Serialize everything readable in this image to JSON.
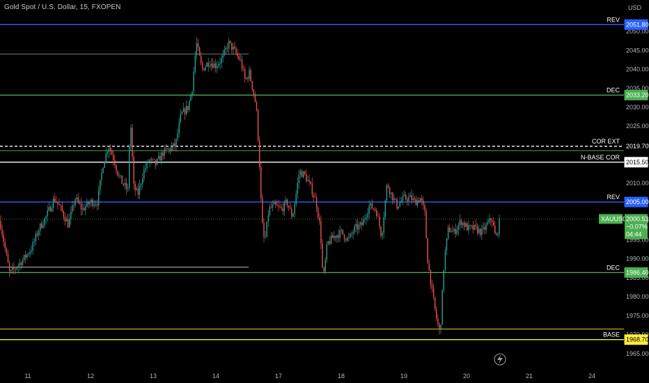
{
  "header": {
    "title": "Gold Spot / U.S. Dollar, 15, FXOPEN"
  },
  "chart_data": {
    "type": "candlestick",
    "y_axis": {
      "currency": "USD",
      "range": [
        1963,
        2057
      ],
      "ticks": [
        "2050.00",
        "2045.00",
        "2040.00",
        "2035.00",
        "2030.00",
        "2025.00",
        "2020.00",
        "2015.00",
        "2010.00",
        "2005.00",
        "2000.00",
        "1995.00",
        "1990.00",
        "1985.00",
        "1980.00",
        "1975.00",
        "1970.00",
        "1965.00"
      ]
    },
    "x_axis": {
      "ticks": [
        "11",
        "12",
        "13",
        "14",
        "17",
        "18",
        "19",
        "20",
        "21",
        "24"
      ]
    },
    "levels": [
      {
        "label": "REV",
        "price": 2051.8,
        "badge": "2051.80",
        "color": "#2962ff",
        "badge_bg": "#2962ff",
        "badge_fg": "#ffffff",
        "style": "solid"
      },
      {
        "label": "DEC",
        "price": 2033.2,
        "badge": "2033.20",
        "color": "#4caf50",
        "badge_bg": "#4caf50",
        "badge_fg": "#ffffff",
        "style": "solid"
      },
      {
        "label": "COR EXT",
        "price": 2019.7,
        "badge": "2019.70",
        "color": "#ffffff",
        "badge_bg": "#000000",
        "badge_fg": "#ffffff",
        "style": "dashed"
      },
      {
        "label": "N-BASE COR",
        "price": 2015.5,
        "badge": "2015.50",
        "color": "#ffffff",
        "badge_bg": "#ffffff",
        "badge_fg": "#000000",
        "style": "solid"
      },
      {
        "label": "REV",
        "price": 2005.0,
        "badge": "2005.00",
        "color": "#2962ff",
        "badge_bg": "#2962ff",
        "badge_fg": "#ffffff",
        "style": "solid"
      },
      {
        "label": "DEC",
        "price": 1986.4,
        "badge": "1986.40",
        "color": "#4caf50",
        "badge_bg": "#4caf50",
        "badge_fg": "#ffffff",
        "style": "solid"
      },
      {
        "label": "BASE",
        "price": 1968.7,
        "badge": "1968.70",
        "color": "#ffeb3b",
        "badge_bg": "#ffeb3b",
        "badge_fg": "#000000",
        "style": "solid"
      }
    ],
    "extra_lines": [
      {
        "price": 2044.0,
        "color": "#9e9e9e",
        "x_end_label": "14"
      },
      {
        "price": 2018.5,
        "color": "#4caf50"
      },
      {
        "price": 1987.8,
        "color": "#ffffff"
      },
      {
        "price": 1971.5,
        "color": "#ffeb3b"
      }
    ],
    "current_price": {
      "symbol": "XAUUSD",
      "price": 2000.53,
      "price_label": "2000.53",
      "change": "−0.07%",
      "countdown": "04:44",
      "color": "#4caf50"
    },
    "candle_colors": {
      "up": "#26a69a",
      "down": "#ef5350"
    },
    "price_path": [
      [
        0,
        2000
      ],
      [
        8,
        1992
      ],
      [
        14,
        1986
      ],
      [
        24,
        1988
      ],
      [
        34,
        1990
      ],
      [
        46,
        1993
      ],
      [
        56,
        1998
      ],
      [
        66,
        2001
      ],
      [
        78,
        2006
      ],
      [
        88,
        2003
      ],
      [
        98,
        1999
      ],
      [
        108,
        2006
      ],
      [
        118,
        2003
      ],
      [
        130,
        2005
      ],
      [
        140,
        2005
      ],
      [
        148,
        2015
      ],
      [
        156,
        2020
      ],
      [
        164,
        2016
      ],
      [
        170,
        2012
      ],
      [
        176,
        2010
      ],
      [
        184,
        2008
      ],
      [
        187,
        2028
      ],
      [
        192,
        2009
      ],
      [
        198,
        2007
      ],
      [
        206,
        2013
      ],
      [
        214,
        2016
      ],
      [
        224,
        2015
      ],
      [
        234,
        2018
      ],
      [
        244,
        2019
      ],
      [
        252,
        2020
      ],
      [
        260,
        2028
      ],
      [
        270,
        2030
      ],
      [
        276,
        2035
      ],
      [
        282,
        2047
      ],
      [
        290,
        2040
      ],
      [
        300,
        2042
      ],
      [
        310,
        2041
      ],
      [
        320,
        2043
      ],
      [
        328,
        2047
      ],
      [
        336,
        2045
      ],
      [
        346,
        2042
      ],
      [
        352,
        2037
      ],
      [
        358,
        2039
      ],
      [
        364,
        2034
      ],
      [
        368,
        2030
      ],
      [
        372,
        2018
      ],
      [
        376,
        2000
      ],
      [
        380,
        1994
      ],
      [
        386,
        2003
      ],
      [
        394,
        2004
      ],
      [
        404,
        2003
      ],
      [
        412,
        2005
      ],
      [
        420,
        2001
      ],
      [
        430,
        2013
      ],
      [
        438,
        2012
      ],
      [
        446,
        2009
      ],
      [
        454,
        2005
      ],
      [
        460,
        1998
      ],
      [
        464,
        1984
      ],
      [
        470,
        1994
      ],
      [
        480,
        1996
      ],
      [
        490,
        1997
      ],
      [
        500,
        1995
      ],
      [
        510,
        1998
      ],
      [
        520,
        1999
      ],
      [
        530,
        2004
      ],
      [
        540,
        2003
      ],
      [
        548,
        1996
      ],
      [
        556,
        2010
      ],
      [
        562,
        2007
      ],
      [
        570,
        2004
      ],
      [
        580,
        2006
      ],
      [
        590,
        2006
      ],
      [
        596,
        2005
      ],
      [
        604,
        2006
      ],
      [
        610,
        2002
      ],
      [
        614,
        1990
      ],
      [
        620,
        1982
      ],
      [
        626,
        1975
      ],
      [
        632,
        1970
      ],
      [
        638,
        1990
      ],
      [
        644,
        1998
      ],
      [
        652,
        1997
      ],
      [
        662,
        2000
      ],
      [
        672,
        1998
      ],
      [
        682,
        1998
      ],
      [
        692,
        1997
      ],
      [
        700,
        1999
      ],
      [
        706,
        2001
      ],
      [
        712,
        1995
      ],
      [
        718,
        2000.5
      ]
    ]
  }
}
